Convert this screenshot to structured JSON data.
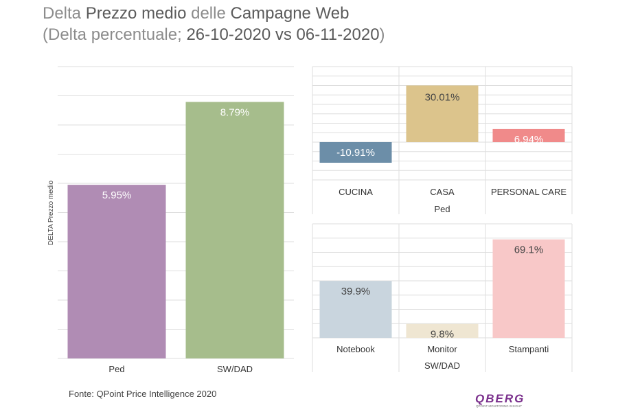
{
  "title": {
    "line1": [
      {
        "text": "Delta ",
        "bold": false
      },
      {
        "text": "Prezzo medio",
        "bold": true
      },
      {
        "text": " delle ",
        "bold": false
      },
      {
        "text": "Campagne Web",
        "bold": true
      }
    ],
    "line2": [
      {
        "text": "(Delta percentuale; ",
        "bold": false
      },
      {
        "text": "26-10-2020 vs 06-11-2020",
        "bold": true
      },
      {
        "text": ")",
        "bold": false
      }
    ]
  },
  "source": "Fonte: QPoint Price Intelligence 2020",
  "logo": {
    "name": "QBERG",
    "tagline": "QPOINT MONITORING INSIGHT",
    "color": "#7a2f8c"
  },
  "chart_data": [
    {
      "type": "bar",
      "ylabel": "DELTA Prezzo medio",
      "categories": [
        "Ped",
        "SW/DAD"
      ],
      "values": [
        5.95,
        8.79
      ],
      "labels": [
        "5.95%",
        "8.79%"
      ],
      "colors": [
        "#b08cb4",
        "#a6bd8c"
      ],
      "ylim": [
        0,
        10
      ],
      "grid": true
    },
    {
      "type": "bar",
      "xlabel": "Ped",
      "categories": [
        "CUCINA",
        "CASA",
        "PERSONAL CARE"
      ],
      "values": [
        -10.91,
        30.01,
        6.94
      ],
      "labels": [
        "-10.91%",
        "30.01%",
        "6.94%"
      ],
      "colors": [
        "#6c8ea8",
        "#dcc48c",
        "#f08a8a"
      ],
      "ylim": [
        -20,
        40
      ],
      "grid": true
    },
    {
      "type": "bar",
      "xlabel": "SW/DAD",
      "categories": [
        "Notebook",
        "Monitor",
        "Stampanti"
      ],
      "values": [
        39.9,
        9.8,
        69.1
      ],
      "labels": [
        "39.9%",
        "9.8%",
        "69.1%"
      ],
      "colors": [
        "#c9d5de",
        "#efe6d2",
        "#f8c8c8"
      ],
      "ylim": [
        0,
        80
      ],
      "grid": true
    }
  ]
}
